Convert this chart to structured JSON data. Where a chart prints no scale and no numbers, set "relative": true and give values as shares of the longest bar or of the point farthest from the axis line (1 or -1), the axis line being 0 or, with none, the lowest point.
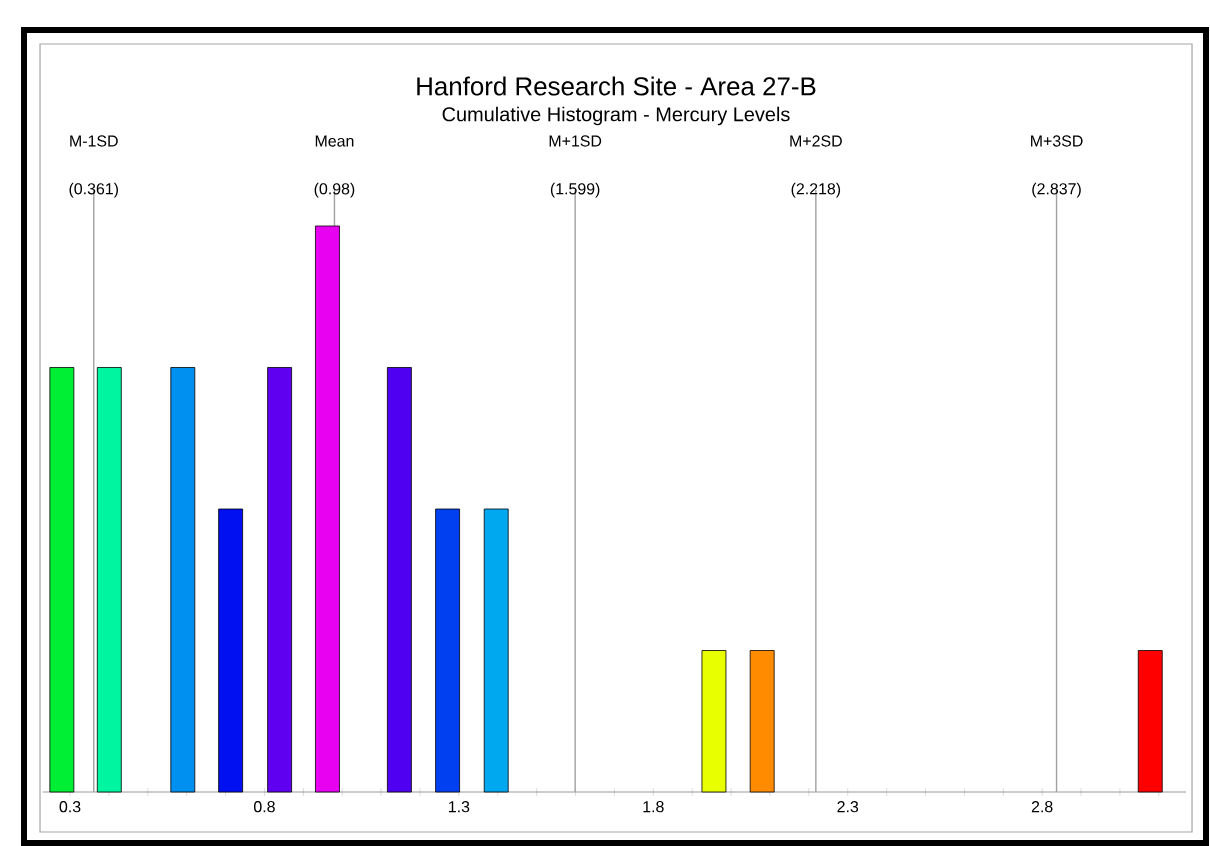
{
  "chart_data": {
    "type": "bar",
    "title": "Hanford Research Site - Area 27-B",
    "subtitle": "Cumulative Histogram - Mercury Levels",
    "relative": true,
    "x": [
      0.279,
      0.401,
      0.59,
      0.713,
      0.839,
      0.962,
      1.147,
      1.271,
      1.396,
      1.956,
      2.08,
      3.078
    ],
    "values": [
      0.75,
      0.75,
      0.75,
      0.5,
      0.75,
      1,
      0.75,
      0.5,
      0.5,
      0.25,
      0.25,
      0.25
    ],
    "colors": [
      "#00ee33",
      "#00f5a0",
      "#0090f0",
      "#0010f0",
      "#6000f0",
      "#e800f0",
      "#5000f0",
      "#0040f0",
      "#00a8f0",
      "#e8ff00",
      "#ff8c00",
      "#ff0000"
    ],
    "xlim": [
      0.23,
      3.17
    ],
    "xticks": [
      0.3,
      {
        "value": 0.4,
        "label": null
      },
      {
        "value": 0.5,
        "label": null
      },
      {
        "value": 0.6,
        "label": null
      },
      {
        "value": 0.7,
        "label": null
      },
      0.8,
      {
        "value": 0.9,
        "label": null
      },
      {
        "value": 1.0,
        "label": null
      },
      {
        "value": 1.1,
        "label": null
      },
      {
        "value": 1.2,
        "label": null
      },
      1.3,
      {
        "value": 1.4,
        "label": null
      },
      {
        "value": 1.5,
        "label": null
      },
      {
        "value": 1.6,
        "label": null
      },
      {
        "value": 1.7,
        "label": null
      },
      1.8,
      {
        "value": 1.9,
        "label": null
      },
      {
        "value": 2.0,
        "label": null
      },
      {
        "value": 2.1,
        "label": null
      },
      {
        "value": 2.2,
        "label": null
      },
      2.3,
      {
        "value": 2.4,
        "label": null
      },
      {
        "value": 2.5,
        "label": null
      },
      {
        "value": 2.6,
        "label": null
      },
      {
        "value": 2.7,
        "label": null
      },
      2.8,
      {
        "value": 2.9,
        "label": null
      },
      {
        "value": 3.0,
        "label": null
      },
      {
        "value": 3.1,
        "label": null
      }
    ],
    "ref_lines": [
      {
        "axis": "x",
        "value": 0.361,
        "label": "M-1SD (0.361)",
        "color": "#a0a0a0"
      },
      {
        "axis": "x",
        "value": 0.98,
        "label": "Mean (0.98)",
        "color": "#a0a0a0"
      },
      {
        "axis": "x",
        "value": 1.599,
        "label": "M+1SD (1.599)",
        "color": "#a0a0a0"
      },
      {
        "axis": "x",
        "value": 2.218,
        "label": "M+2SD (2.218)",
        "color": "#a0a0a0"
      },
      {
        "axis": "x",
        "value": 2.837,
        "label": "M+3SD (2.837)",
        "color": "#a0a0a0"
      }
    ]
  }
}
